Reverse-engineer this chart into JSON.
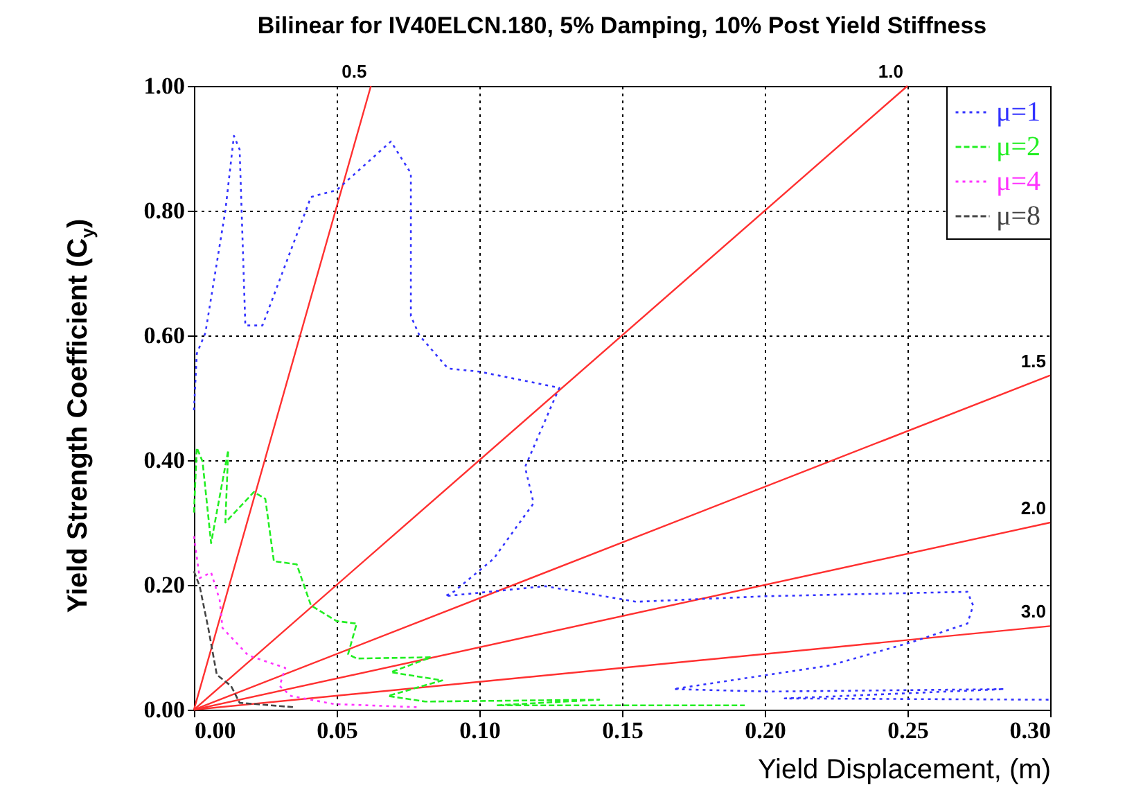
{
  "chart_data": {
    "type": "line",
    "title": "Bilinear for IV40ELCN.180,  5% Damping,  10% Post Yield Stiffness",
    "xlabel": "Yield Displacement, (m)",
    "ylabel": "Yield Strength Coefficient (C$_{y}$)",
    "xlim": [
      0,
      0.3
    ],
    "ylim": [
      0,
      1
    ],
    "xticks": [
      {
        "value": 0,
        "label": "0.00"
      },
      {
        "value": 0.05,
        "label": "0.05"
      },
      {
        "value": 0.1,
        "label": "0.10"
      },
      {
        "value": 0.15,
        "label": "0.15"
      },
      {
        "value": 0.2,
        "label": "0.20"
      },
      {
        "value": 0.25,
        "label": "0.25"
      },
      {
        "value": 0.3,
        "label": "0.30"
      }
    ],
    "yticks": [
      {
        "value": 0,
        "label": "0.00"
      },
      {
        "value": 0.2,
        "label": "0.20"
      },
      {
        "value": 0.4,
        "label": "0.40"
      },
      {
        "value": 0.6,
        "label": "0.60"
      },
      {
        "value": 0.8,
        "label": "0.80"
      },
      {
        "value": 1,
        "label": "1.00"
      }
    ],
    "grid": true,
    "legend": "top right",
    "series": [
      {
        "name": "0.5",
        "color": "#ff3030",
        "x": [
          0,
          0.062
        ],
        "values": [
          0,
          1
        ]
      },
      {
        "name": "1.0",
        "color": "#ff3030",
        "x": [
          0,
          0.25
        ],
        "values": [
          0,
          1
        ]
      },
      {
        "name": "1.5",
        "color": "#ff3030",
        "x": [
          0,
          0.3
        ],
        "values": [
          0,
          0.536
        ]
      },
      {
        "name": "2.0",
        "color": "#ff3030",
        "x": [
          0,
          0.3
        ],
        "values": [
          0,
          0.3
        ]
      },
      {
        "name": "3.0",
        "color": "#ff3030",
        "x": [
          0,
          0.3
        ],
        "values": [
          0,
          0.134
        ]
      },
      {
        "name": "μ=1",
        "color": "#3333ff",
        "line_style": "dotted",
        "x": [
          0,
          0.001,
          0.004,
          0.011,
          0.014,
          0.016,
          0.018,
          0.024,
          0.041,
          0.05,
          0.069,
          0.076,
          0.076,
          0.079,
          0.089,
          0.1,
          0.128,
          0.116,
          0.119,
          0.105,
          0.091,
          0.088,
          0.123,
          0.155,
          0.201,
          0.271,
          0.273,
          0.271,
          0.252,
          0.223,
          0.168,
          0.201,
          0.284,
          0.207,
          0.3
        ],
        "values": [
          0.48,
          0.571,
          0.604,
          0.8,
          0.92,
          0.898,
          0.616,
          0.616,
          0.822,
          0.833,
          0.911,
          0.86,
          0.631,
          0.6,
          0.547,
          0.542,
          0.516,
          0.389,
          0.331,
          0.242,
          0.189,
          0.182,
          0.198,
          0.173,
          0.182,
          0.189,
          0.167,
          0.138,
          0.109,
          0.071,
          0.033,
          0.029,
          0.033,
          0.018,
          0.016
        ]
      },
      {
        "name": "μ=2",
        "color": "#22ee22",
        "line_style": "dashed",
        "x": [
          0,
          0.001,
          0.003,
          0.006,
          0.012,
          0.011,
          0.021,
          0.025,
          0.028,
          0.036,
          0.041,
          0.05,
          0.057,
          0.054,
          0.057,
          0.083,
          0.069,
          0.087,
          0.068,
          0.081,
          0.142,
          0.106,
          0.193
        ],
        "values": [
          0.316,
          0.42,
          0.398,
          0.267,
          0.416,
          0.3,
          0.349,
          0.338,
          0.238,
          0.233,
          0.167,
          0.142,
          0.138,
          0.089,
          0.082,
          0.084,
          0.06,
          0.047,
          0.022,
          0.013,
          0.016,
          0.007,
          0.007
        ]
      },
      {
        "name": "μ=4",
        "color": "#ff33ff",
        "line_style": "dotted",
        "x": [
          0,
          0.002,
          0.006,
          0.009,
          0.01,
          0.019,
          0.032,
          0.03,
          0.034,
          0.049,
          0.078
        ],
        "values": [
          0.278,
          0.211,
          0.22,
          0.176,
          0.131,
          0.087,
          0.067,
          0.038,
          0.022,
          0.009,
          0.004
        ]
      },
      {
        "name": "μ=8",
        "color": "#444444",
        "line_style": "dashed",
        "x": [
          0,
          0.002,
          0.005,
          0.008,
          0.013,
          0.016,
          0.035
        ],
        "values": [
          0.222,
          0.198,
          0.131,
          0.056,
          0.038,
          0.011,
          0.004
        ]
      }
    ]
  }
}
